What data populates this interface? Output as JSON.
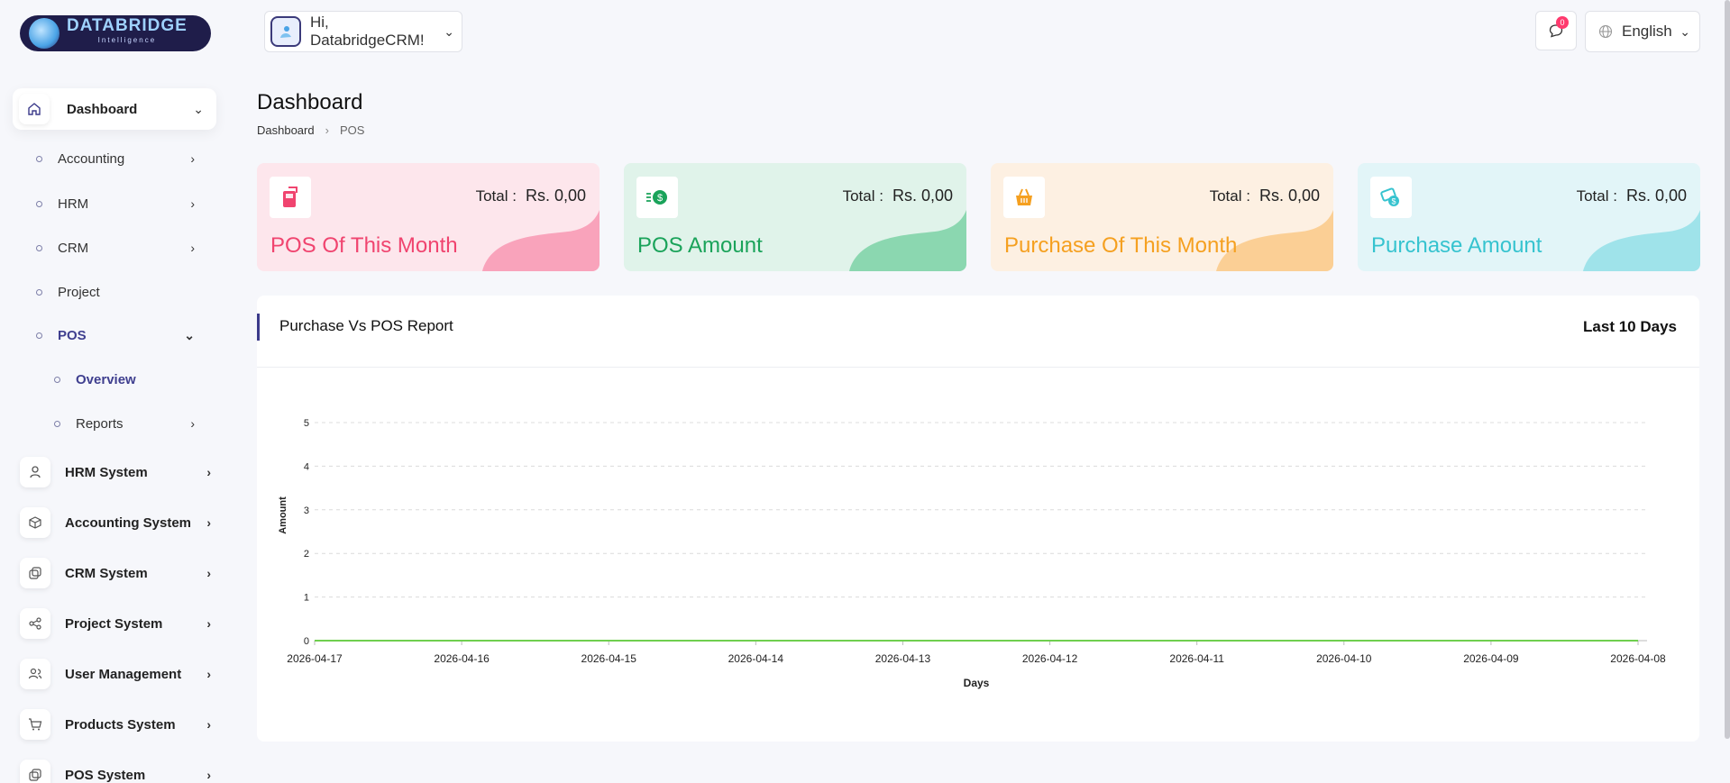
{
  "brand": {
    "name": "DATABRIDGE",
    "tagline": "Intelligence"
  },
  "sidebar": {
    "top": {
      "label": "Dashboard",
      "icon": "home-icon"
    },
    "sub_items": [
      {
        "label": "Accounting",
        "chevron": "›"
      },
      {
        "label": "HRM",
        "chevron": "›"
      },
      {
        "label": "CRM",
        "chevron": "›"
      },
      {
        "label": "Project",
        "chevron": ""
      },
      {
        "label": "POS",
        "chevron": "⌄"
      },
      {
        "label": "Overview",
        "chevron": ""
      },
      {
        "label": "Reports",
        "chevron": "›"
      }
    ],
    "systems": [
      {
        "label": "HRM System",
        "icon": "user-icon"
      },
      {
        "label": "Accounting System",
        "icon": "box-icon"
      },
      {
        "label": "CRM System",
        "icon": "layers-icon"
      },
      {
        "label": "Project System",
        "icon": "share-icon"
      },
      {
        "label": "User Management",
        "icon": "users-icon"
      },
      {
        "label": "Products System",
        "icon": "cart-icon"
      },
      {
        "label": "POS System",
        "icon": "layers-icon"
      }
    ]
  },
  "header": {
    "greeting": "Hi, DatabridgeCRM!",
    "notification_count": "0",
    "language": "English"
  },
  "page": {
    "title": "Dashboard",
    "breadcrumb": [
      "Dashboard",
      "POS"
    ]
  },
  "cards": [
    {
      "title": "POS Of This Month",
      "total_label": "Total :",
      "total_value": "Rs. 0,00",
      "color": "#f0446f",
      "bg": "#fde6ec",
      "wave": "#f9a3bb",
      "icon": "pos-terminal-icon"
    },
    {
      "title": "POS Amount",
      "total_label": "Total :",
      "total_value": "Rs. 0,00",
      "color": "#1aa35a",
      "bg": "#e0f3ea",
      "wave": "#8bd7b0",
      "icon": "cash-icon"
    },
    {
      "title": "Purchase Of This Month",
      "total_label": "Total :",
      "total_value": "Rs. 0,00",
      "color": "#f5a020",
      "bg": "#fdf0e2",
      "wave": "#fbcf95",
      "icon": "basket-icon"
    },
    {
      "title": "Purchase Amount",
      "total_label": "Total :",
      "total_value": "Rs. 0,00",
      "color": "#36c3cf",
      "bg": "#e2f5f8",
      "wave": "#9fe3ea",
      "icon": "money-icon"
    }
  ],
  "report": {
    "title": "Purchase Vs POS Report",
    "range": "Last 10 Days"
  },
  "chart_data": {
    "type": "line",
    "categories": [
      "2026-04-17",
      "2026-04-16",
      "2026-04-15",
      "2026-04-14",
      "2026-04-13",
      "2026-04-12",
      "2026-04-11",
      "2026-04-10",
      "2026-04-09",
      "2026-04-08"
    ],
    "series": [
      {
        "values": [
          0,
          0,
          0,
          0,
          0,
          0,
          0,
          0,
          0,
          0
        ],
        "color": "#6fcf4f"
      },
      {
        "values": [
          0,
          0,
          0,
          0,
          0,
          0,
          0,
          0,
          0,
          0
        ],
        "color": "#3b3a8a"
      }
    ],
    "xlabel": "Days",
    "ylabel": "Amount",
    "ylim": [
      0,
      5
    ],
    "yticks": [
      "0",
      "1",
      "2",
      "3",
      "4",
      "5"
    ],
    "grid": true
  }
}
